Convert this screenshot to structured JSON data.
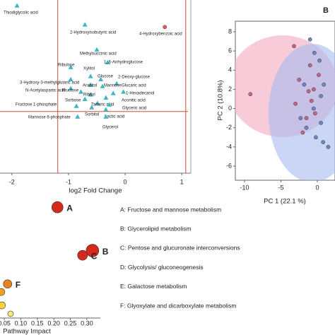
{
  "chart_data": [
    {
      "type": "scatter",
      "x_label": "log2 Fold Change",
      "xlim": [
        -2.21,
        1.11
      ],
      "ylim": [
        0,
        5
      ],
      "xticks": [
        -2,
        -1,
        0,
        1
      ],
      "vlines": [
        -1.19,
        1.07
      ],
      "hlines": [
        1.78
      ],
      "line_color": "#c8503c",
      "series": [
        {
          "marker": "triangle",
          "color": "#3fb6c4",
          "labels": [
            "Thiodiglycolic acid",
            "2-Hydroxyisobutyric acid",
            "Methylsuccinic acid",
            "1, 6-Anhydroglucose",
            "Ribulose",
            "Xylitol",
            "3-Hydroxy-3-methylglutaric acid",
            "Glucose",
            "2-Deoxy-glucose",
            "Arabitol",
            "Mannose",
            "N-Acetylaspartic acid",
            "Glucaric acid",
            "1-Hexadecanol",
            "Fructose",
            "Ribitol",
            "Aconitic acid",
            "Sorbose",
            "Tartaric acid",
            "Glyceric acid",
            "Fructose 1-phosphate",
            "Lactic acid",
            "Sorbitol",
            "Mannose 6-phosphate",
            "Glycerol"
          ],
          "x": [
            -1.91,
            -0.71,
            -0.5,
            -0.31,
            -0.96,
            -0.61,
            -0.96,
            -0.43,
            -0.15,
            -0.61,
            -0.4,
            -0.96,
            -0.21,
            -0.03,
            -0.78,
            -0.61,
            -0.34,
            -0.71,
            -0.49,
            -0.28,
            -0.86,
            -0.34,
            -0.59,
            -0.84,
            -0.34
          ],
          "values": [
            4.84,
            4.29,
            3.57,
            3.2,
            3.06,
            2.8,
            2.71,
            2.71,
            2.59,
            2.55,
            2.51,
            2.45,
            2.31,
            2.35,
            2.35,
            2.27,
            2.18,
            2.14,
            2.02,
            1.98,
            1.94,
            1.84,
            1.9,
            1.63,
            1.63
          ]
        },
        {
          "marker": "circle",
          "color": "#e8585a",
          "labels": [
            "4-Hydroxybenzoic acid"
          ],
          "x": [
            0.7
          ],
          "values": [
            4.22
          ]
        }
      ]
    },
    {
      "type": "scatter",
      "panel_label": "B",
      "x_label": "PC 1 (22.1 %)",
      "y_label": "PC 2 (10.8%)",
      "xlim": [
        -11.26,
        2.43
      ],
      "ylim": [
        -7.47,
        9.1
      ],
      "xticks": [
        -10,
        -5,
        0
      ],
      "yticks": [
        8,
        6,
        4,
        2,
        0,
        -2,
        -4,
        -6
      ],
      "series": [
        {
          "marker": "circle",
          "color": "#c0668a",
          "x": [
            -9.2,
            -3.2,
            -2.5,
            -1,
            -0.5,
            -1.5,
            -3,
            -0.8,
            0.2,
            -2,
            -0.3,
            -1.2
          ],
          "values": [
            1.5,
            6.5,
            3,
            4.5,
            2,
            -1,
            0.5,
            0.8,
            3.5,
            -2.5,
            -0.5,
            1.8
          ]
        },
        {
          "marker": "circle",
          "color": "#6a88c8",
          "x": [
            -1,
            -0.4,
            0.3,
            0.9,
            -1.8,
            -0.5,
            0.5,
            -2.3,
            0.8,
            -0.2,
            1.5,
            0.5,
            -1.5
          ],
          "values": [
            7.2,
            5.8,
            5,
            2.5,
            2.5,
            0,
            -1.5,
            -1,
            -3.5,
            -3,
            -4,
            1.3,
            -2
          ]
        }
      ]
    },
    {
      "type": "scatter",
      "x_label": "Pathway Impact",
      "xlim": [
        0.037,
        0.341
      ],
      "ylim": [
        0,
        18
      ],
      "xticks": [
        {
          "value": 0.05,
          "label": "0.05"
        },
        {
          "value": 0.1,
          "label": "0.10"
        },
        0.15,
        {
          "value": 0.2,
          "label": "0.20"
        },
        0.25,
        {
          "value": 0.3,
          "label": "0.30"
        }
      ],
      "series": [
        {
          "marker": "circle",
          "colors": [
            "#d42a1e",
            "#d42a1e",
            "#d42a1e",
            "#e8821c",
            "#f0a020",
            "#f5d040",
            "#f8e878"
          ],
          "labels": [
            "A",
            "B",
            "C",
            "F",
            null,
            null,
            null
          ],
          "x": [
            0.211,
            0.317,
            0.287,
            0.06,
            0.041,
            0.043,
            0.069
          ],
          "values": [
            16.6,
            10.1,
            9.4,
            5.1,
            3.9,
            1.9,
            0.64
          ],
          "sizes": [
            8,
            9,
            7,
            6,
            5,
            5,
            4
          ]
        }
      ],
      "annotations": [
        "A: Fructose and mannose metabolism",
        "B: Glycerolipid metabolism",
        "C: Pentose and glucuronate interconversions",
        "D: Glycolysis/ gluconeogenesis",
        "E: Galactose metabolism",
        "F: Glyoxylate and dicarboxylate metabolism"
      ]
    }
  ]
}
